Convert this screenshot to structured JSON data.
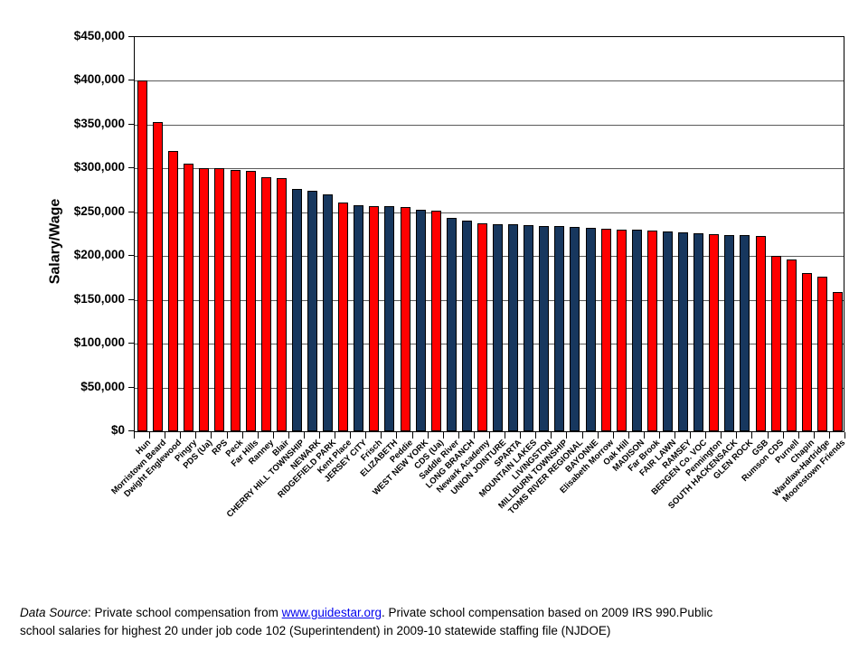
{
  "chart_data": {
    "type": "bar",
    "title": "",
    "xlabel": "",
    "ylabel": "Salary/Wage",
    "ylim": [
      0,
      450000
    ],
    "ytick_step": 50000,
    "ytick_labels": [
      "$0",
      "$50,000",
      "$100,000",
      "$150,000",
      "$200,000",
      "$250,000",
      "$300,000",
      "$350,000",
      "$400,000",
      "$450,000"
    ],
    "grid": "horizontal-on",
    "legend": "none",
    "colors": {
      "private": "#FF0000",
      "public": "#17375E"
    },
    "bars": [
      {
        "label": "Hun",
        "group": "private",
        "value": 400000
      },
      {
        "label": "Morristown Beard",
        "group": "private",
        "value": 353000
      },
      {
        "label": "Dwight Englewood",
        "group": "private",
        "value": 320000
      },
      {
        "label": "Pingry",
        "group": "private",
        "value": 306000
      },
      {
        "label": "PDS (Ua)",
        "group": "private",
        "value": 300000
      },
      {
        "label": "RPS",
        "group": "private",
        "value": 300000
      },
      {
        "label": "Peck",
        "group": "private",
        "value": 298000
      },
      {
        "label": "Far Hills",
        "group": "private",
        "value": 297000
      },
      {
        "label": "Ranney",
        "group": "private",
        "value": 290000
      },
      {
        "label": "Blair",
        "group": "private",
        "value": 289000
      },
      {
        "label": "CHERRY HILL TOWNSHIP",
        "group": "public",
        "value": 277000
      },
      {
        "label": "NEWARK",
        "group": "public",
        "value": 275000
      },
      {
        "label": "RIDGEFIELD PARK",
        "group": "public",
        "value": 270000
      },
      {
        "label": "Kent Place",
        "group": "private",
        "value": 261000
      },
      {
        "label": "JERSEY CITY",
        "group": "public",
        "value": 258000
      },
      {
        "label": "Frisch",
        "group": "private",
        "value": 257000
      },
      {
        "label": "ELIZABETH",
        "group": "public",
        "value": 257000
      },
      {
        "label": "Peddie",
        "group": "private",
        "value": 256000
      },
      {
        "label": "WEST NEW YORK",
        "group": "public",
        "value": 253000
      },
      {
        "label": "CDS (Ua)",
        "group": "private",
        "value": 252000
      },
      {
        "label": "Saddle River",
        "group": "public",
        "value": 244000
      },
      {
        "label": "LONG BRANCH",
        "group": "public",
        "value": 240000
      },
      {
        "label": "Newark Academy",
        "group": "private",
        "value": 237000
      },
      {
        "label": "UNION JOINTURE",
        "group": "public",
        "value": 236000
      },
      {
        "label": "SPARTA",
        "group": "public",
        "value": 236000
      },
      {
        "label": "MOUNTAIN LAKES",
        "group": "public",
        "value": 235000
      },
      {
        "label": "LIVINGSTON",
        "group": "public",
        "value": 234000
      },
      {
        "label": "MILLBURN TOWNSHIP",
        "group": "public",
        "value": 234000
      },
      {
        "label": "TOMS RIVER REGIONAL",
        "group": "public",
        "value": 233000
      },
      {
        "label": "BAYONNE",
        "group": "public",
        "value": 232000
      },
      {
        "label": "Elisabeth Morrow",
        "group": "private",
        "value": 231000
      },
      {
        "label": "Oak Hill",
        "group": "private",
        "value": 230000
      },
      {
        "label": "MADISON",
        "group": "public",
        "value": 230000
      },
      {
        "label": "Far Brook",
        "group": "private",
        "value": 229000
      },
      {
        "label": "FAIR LAWN",
        "group": "public",
        "value": 228000
      },
      {
        "label": "RAMSEY",
        "group": "public",
        "value": 227000
      },
      {
        "label": "BERGEN Co. VOC",
        "group": "public",
        "value": 226000
      },
      {
        "label": "Pennington",
        "group": "private",
        "value": 225000
      },
      {
        "label": "SOUTH HACKENSACK",
        "group": "public",
        "value": 224000
      },
      {
        "label": "GLEN ROCK",
        "group": "public",
        "value": 224000
      },
      {
        "label": "GSB",
        "group": "private",
        "value": 223000
      },
      {
        "label": "Rumson CDS",
        "group": "private",
        "value": 200000
      },
      {
        "label": "Purnell",
        "group": "private",
        "value": 196000
      },
      {
        "label": "Chapin",
        "group": "private",
        "value": 181000
      },
      {
        "label": "Wardlaw-Hartridge",
        "group": "private",
        "value": 176000
      },
      {
        "label": "Moorestown Friends",
        "group": "private",
        "value": 159000
      }
    ]
  },
  "footer": {
    "source_label_italic": "Data Source",
    "before_link": ": Private school compensation from ",
    "link_text": "www.guidestar.org",
    "after_link": ". Private school compensation based on 2009 IRS 990.Public",
    "line2": "school salaries for highest 20 under job code 102 (Superintendent) in 2009-10 statewide staffing file (NJDOE)",
    "link_color": "#0000EE"
  }
}
